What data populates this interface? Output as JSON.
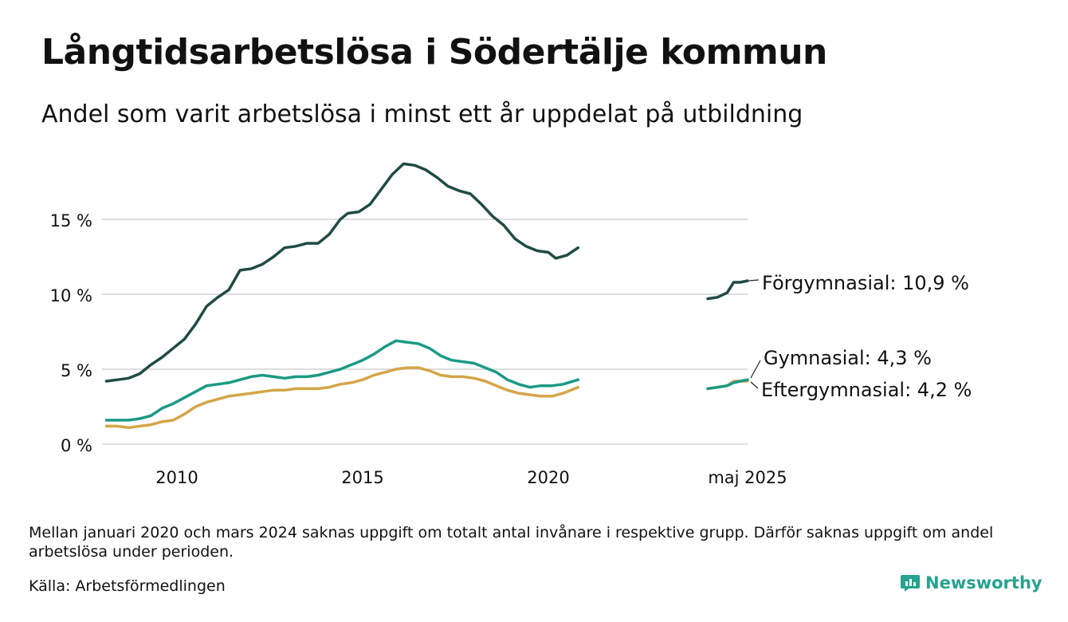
{
  "title": "Långtidsarbetslösa i Södertälje kommun",
  "subtitle": "Andel som varit arbetslösa i minst ett år uppdelat på utbildning",
  "note": "Mellan januari 2020 och mars 2024 saknas uppgift om totalt antal invånare i respektive grupp. Därför saknas uppgift om andel arbetslösa under perioden.",
  "source": "Källa: Arbetsförmedlingen",
  "brand": {
    "name": "Newsworthy",
    "color": "#26a38f"
  },
  "chart_data": {
    "type": "line",
    "title": "Långtidsarbetslösa i Södertälje kommun",
    "subtitle": "Andel som varit arbetslösa i minst ett år uppdelat på utbildning",
    "y_ticks": [
      {
        "value": 0,
        "label": "0 %"
      },
      {
        "value": 5,
        "label": "5 %"
      },
      {
        "value": 10,
        "label": "10 %"
      },
      {
        "value": 15,
        "label": "15 %"
      }
    ],
    "ylim": [
      0,
      19
    ],
    "x_ticks": [
      {
        "x": 2010,
        "label": "2010"
      },
      {
        "x": 2015,
        "label": "2015"
      },
      {
        "x": 2020,
        "label": "2020"
      },
      {
        "x": 2025.33,
        "label": "maj 2025"
      }
    ],
    "grid": true,
    "gap_note": "Data missing January 2020 – March 2024 (x-axis compressed in gap)",
    "series": [
      {
        "name": "Förgymnasial",
        "end_label": "Förgymnasial: 10,9 %",
        "color": "#1f4b43",
        "segments": [
          [
            [
              2008.1,
              4.2
            ],
            [
              2008.4,
              4.3
            ],
            [
              2008.7,
              4.4
            ],
            [
              2009.0,
              4.7
            ],
            [
              2009.3,
              5.3
            ],
            [
              2009.6,
              5.8
            ],
            [
              2009.9,
              6.4
            ],
            [
              2010.2,
              7.0
            ],
            [
              2010.5,
              8.0
            ],
            [
              2010.8,
              9.2
            ],
            [
              2011.1,
              9.8
            ],
            [
              2011.4,
              10.3
            ],
            [
              2011.7,
              11.6
            ],
            [
              2012.0,
              11.7
            ],
            [
              2012.3,
              12.0
            ],
            [
              2012.6,
              12.5
            ],
            [
              2012.9,
              13.1
            ],
            [
              2013.2,
              13.2
            ],
            [
              2013.5,
              13.4
            ],
            [
              2013.8,
              13.4
            ],
            [
              2014.1,
              14.0
            ],
            [
              2014.4,
              15.0
            ],
            [
              2014.6,
              15.4
            ],
            [
              2014.9,
              15.5
            ],
            [
              2015.2,
              16.0
            ],
            [
              2015.5,
              17.0
            ],
            [
              2015.8,
              18.0
            ],
            [
              2016.1,
              18.7
            ],
            [
              2016.4,
              18.6
            ],
            [
              2016.7,
              18.3
            ],
            [
              2017.0,
              17.8
            ],
            [
              2017.3,
              17.2
            ],
            [
              2017.6,
              16.9
            ],
            [
              2017.9,
              16.7
            ],
            [
              2018.2,
              16.0
            ],
            [
              2018.5,
              15.2
            ],
            [
              2018.8,
              14.6
            ],
            [
              2019.1,
              13.7
            ],
            [
              2019.4,
              13.2
            ],
            [
              2019.7,
              12.9
            ],
            [
              2020.0,
              12.8
            ],
            [
              2020.2,
              12.4
            ],
            [
              2020.5,
              12.6
            ],
            [
              2020.8,
              13.1
            ]
          ],
          [
            [
              2024.1,
              9.7
            ],
            [
              2024.4,
              9.8
            ],
            [
              2024.7,
              10.1
            ],
            [
              2024.9,
              10.8
            ],
            [
              2025.1,
              10.8
            ],
            [
              2025.33,
              10.9
            ]
          ]
        ]
      },
      {
        "name": "Gymnasial",
        "end_label": "Gymnasial:  4,3 %",
        "color": "#1a9a84",
        "segments": [
          [
            [
              2008.1,
              1.6
            ],
            [
              2008.4,
              1.6
            ],
            [
              2008.7,
              1.6
            ],
            [
              2009.0,
              1.7
            ],
            [
              2009.3,
              1.9
            ],
            [
              2009.6,
              2.4
            ],
            [
              2009.9,
              2.7
            ],
            [
              2010.2,
              3.1
            ],
            [
              2010.5,
              3.5
            ],
            [
              2010.8,
              3.9
            ],
            [
              2011.1,
              4.0
            ],
            [
              2011.4,
              4.1
            ],
            [
              2011.7,
              4.3
            ],
            [
              2012.0,
              4.5
            ],
            [
              2012.3,
              4.6
            ],
            [
              2012.6,
              4.5
            ],
            [
              2012.9,
              4.4
            ],
            [
              2013.2,
              4.5
            ],
            [
              2013.5,
              4.5
            ],
            [
              2013.8,
              4.6
            ],
            [
              2014.1,
              4.8
            ],
            [
              2014.4,
              5.0
            ],
            [
              2014.7,
              5.3
            ],
            [
              2015.0,
              5.6
            ],
            [
              2015.3,
              6.0
            ],
            [
              2015.6,
              6.5
            ],
            [
              2015.9,
              6.9
            ],
            [
              2016.2,
              6.8
            ],
            [
              2016.5,
              6.7
            ],
            [
              2016.8,
              6.4
            ],
            [
              2017.1,
              5.9
            ],
            [
              2017.4,
              5.6
            ],
            [
              2017.7,
              5.5
            ],
            [
              2018.0,
              5.4
            ],
            [
              2018.3,
              5.1
            ],
            [
              2018.6,
              4.8
            ],
            [
              2018.9,
              4.3
            ],
            [
              2019.2,
              4.0
            ],
            [
              2019.5,
              3.8
            ],
            [
              2019.8,
              3.9
            ],
            [
              2020.1,
              3.9
            ],
            [
              2020.4,
              4.0
            ],
            [
              2020.8,
              4.3
            ]
          ],
          [
            [
              2024.1,
              3.7
            ],
            [
              2024.4,
              3.8
            ],
            [
              2024.7,
              3.9
            ],
            [
              2024.9,
              4.1
            ],
            [
              2025.1,
              4.2
            ],
            [
              2025.33,
              4.3
            ]
          ]
        ]
      },
      {
        "name": "Eftergymnasial",
        "end_label": "Eftergymnasial:  4,2 %",
        "color": "#d4a548",
        "segments": [
          [
            [
              2008.1,
              1.2
            ],
            [
              2008.4,
              1.2
            ],
            [
              2008.7,
              1.1
            ],
            [
              2009.0,
              1.2
            ],
            [
              2009.3,
              1.3
            ],
            [
              2009.6,
              1.5
            ],
            [
              2009.9,
              1.6
            ],
            [
              2010.2,
              2.0
            ],
            [
              2010.5,
              2.5
            ],
            [
              2010.8,
              2.8
            ],
            [
              2011.1,
              3.0
            ],
            [
              2011.4,
              3.2
            ],
            [
              2011.7,
              3.3
            ],
            [
              2012.0,
              3.4
            ],
            [
              2012.3,
              3.5
            ],
            [
              2012.6,
              3.6
            ],
            [
              2012.9,
              3.6
            ],
            [
              2013.2,
              3.7
            ],
            [
              2013.5,
              3.7
            ],
            [
              2013.8,
              3.7
            ],
            [
              2014.1,
              3.8
            ],
            [
              2014.4,
              4.0
            ],
            [
              2014.7,
              4.1
            ],
            [
              2015.0,
              4.3
            ],
            [
              2015.3,
              4.6
            ],
            [
              2015.6,
              4.8
            ],
            [
              2015.9,
              5.0
            ],
            [
              2016.2,
              5.1
            ],
            [
              2016.5,
              5.1
            ],
            [
              2016.8,
              4.9
            ],
            [
              2017.1,
              4.6
            ],
            [
              2017.4,
              4.5
            ],
            [
              2017.7,
              4.5
            ],
            [
              2018.0,
              4.4
            ],
            [
              2018.3,
              4.2
            ],
            [
              2018.6,
              3.9
            ],
            [
              2018.9,
              3.6
            ],
            [
              2019.2,
              3.4
            ],
            [
              2019.5,
              3.3
            ],
            [
              2019.8,
              3.2
            ],
            [
              2020.1,
              3.2
            ],
            [
              2020.4,
              3.4
            ],
            [
              2020.8,
              3.8
            ]
          ],
          [
            [
              2024.1,
              3.7
            ],
            [
              2024.4,
              3.8
            ],
            [
              2024.7,
              3.9
            ],
            [
              2024.9,
              4.2
            ],
            [
              2025.1,
              4.2
            ],
            [
              2025.33,
              4.2
            ]
          ]
        ]
      }
    ]
  }
}
